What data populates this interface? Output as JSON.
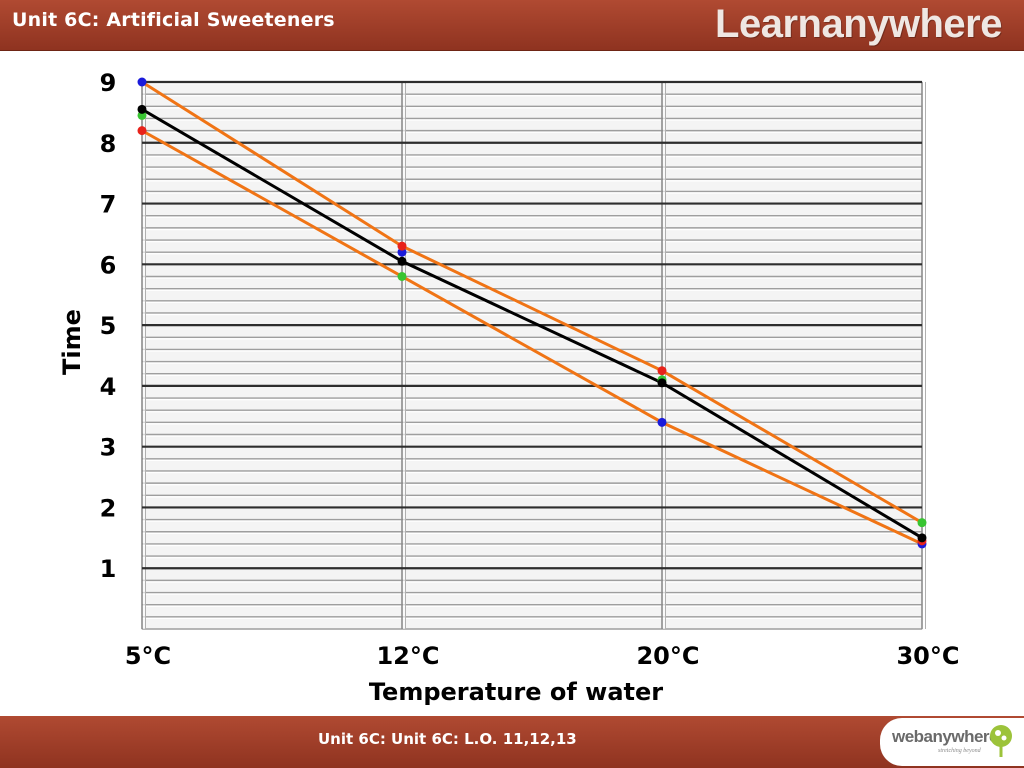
{
  "header": {
    "title": "Unit 6C: Artificial Sweeteners",
    "brand": "Learnanywhere"
  },
  "footer": {
    "text": "Unit 6C: Unit 6C: L.O. 11,12,13",
    "logo_text": "webanywhere",
    "logo_sub": "stretching beyond"
  },
  "chart_data": {
    "type": "line",
    "categories": [
      "5°C",
      "12°C",
      "20°C",
      "30°C"
    ],
    "xlabel": "Temperature of water",
    "ylabel": "Time",
    "y_ticks": [
      1,
      2,
      3,
      4,
      5,
      6,
      7,
      8,
      9
    ],
    "ylim": [
      0,
      9
    ],
    "grid": true,
    "series": [
      {
        "color": "#1a1adb",
        "marker": "dot",
        "line": false,
        "values": [
          9.0,
          6.2,
          3.4,
          1.4
        ]
      },
      {
        "color": "#e8221a",
        "marker": "dot",
        "line": false,
        "values": [
          8.2,
          6.3,
          4.25,
          1.45
        ]
      },
      {
        "color": "#38c431",
        "marker": "dot",
        "line": false,
        "values": [
          8.45,
          5.8,
          4.1,
          1.75
        ]
      },
      {
        "color": "#000000",
        "marker": "dot",
        "line": true,
        "values": [
          8.55,
          6.05,
          4.05,
          1.5
        ]
      }
    ],
    "range_lines": {
      "color": "#f07415",
      "upper": [
        9.0,
        6.3,
        4.25,
        1.75
      ],
      "lower": [
        8.2,
        5.8,
        3.4,
        1.4
      ]
    }
  }
}
